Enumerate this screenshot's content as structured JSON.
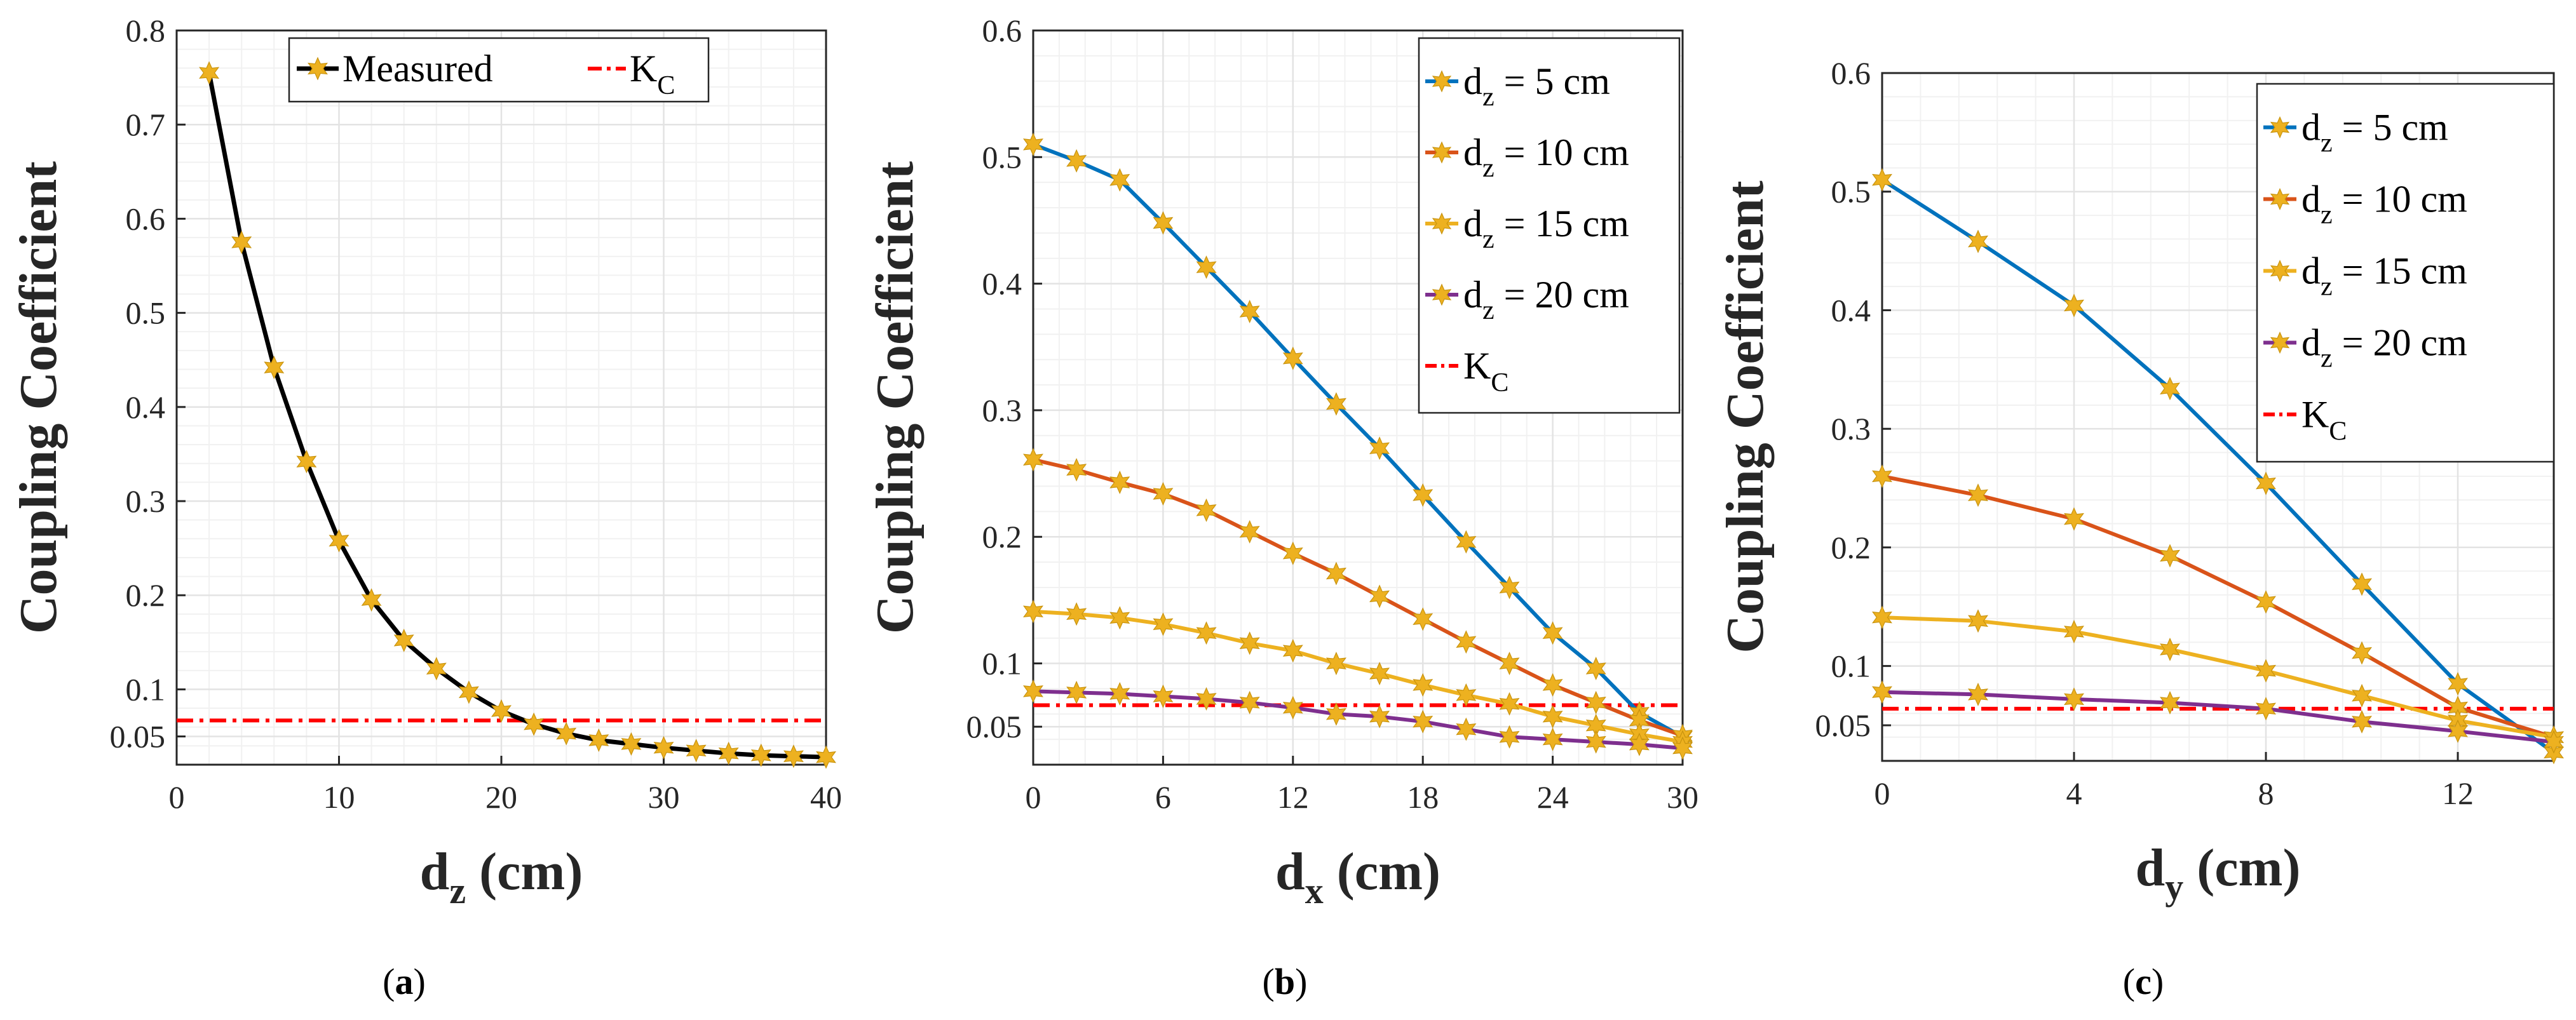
{
  "colors": {
    "blue": "#0072BD",
    "orange": "#D95319",
    "yellow": "#EDB120",
    "purple": "#7E2F8E",
    "black": "#000000",
    "threshold": "#FF0000",
    "marker": "#EDB120"
  },
  "chart_data": [
    {
      "type": "line",
      "panel_label": "a",
      "ylabel": "Coupling Coefficient",
      "xlabel_main": "d",
      "xlabel_sub": "z",
      "xlabel_unit": "(cm)",
      "xlim": [
        0,
        40
      ],
      "ylim": [
        0.02,
        0.8
      ],
      "xticks": [
        0,
        10,
        20,
        30,
        40
      ],
      "xtick_labels": [
        "0",
        "10",
        "20",
        "30",
        "40"
      ],
      "yticks": [
        0.05,
        0.1,
        0.2,
        0.3,
        0.4,
        0.5,
        0.6,
        0.7,
        0.8
      ],
      "ytick_labels": [
        "0.05",
        "0.1",
        "0.2",
        "0.3",
        "0.4",
        "0.5",
        "0.6",
        "0.7",
        "0.8"
      ],
      "grid": true,
      "legend_position": "top-right",
      "legend_layout": "horizontal",
      "series": [
        {
          "name": "Measured",
          "color": "#000000",
          "x": [
            2,
            4,
            6,
            8,
            10,
            12,
            14,
            16,
            18,
            20,
            22,
            24,
            26,
            28,
            30,
            32,
            34,
            36,
            38,
            40
          ],
          "values": [
            0.755,
            0.575,
            0.442,
            0.342,
            0.258,
            0.195,
            0.152,
            0.122,
            0.097,
            0.077,
            0.063,
            0.053,
            0.046,
            0.042,
            0.038,
            0.035,
            0.032,
            0.03,
            0.029,
            0.028
          ]
        }
      ],
      "threshold": {
        "name": "K",
        "sub": "C",
        "value": 0.067
      }
    },
    {
      "type": "line",
      "panel_label": "b",
      "ylabel": "Coupling Coefficient",
      "xlabel_main": "d",
      "xlabel_sub": "x",
      "xlabel_unit": "(cm)",
      "xlim": [
        0,
        30
      ],
      "ylim": [
        0.02,
        0.6
      ],
      "xticks": [
        0,
        6,
        12,
        18,
        24,
        30
      ],
      "xtick_labels": [
        "0",
        "6",
        "12",
        "18",
        "24",
        "30"
      ],
      "yticks": [
        0.05,
        0.1,
        0.2,
        0.3,
        0.4,
        0.5,
        0.6
      ],
      "ytick_labels": [
        "0.05",
        "0.1",
        "0.2",
        "0.3",
        "0.4",
        "0.5",
        "0.6"
      ],
      "grid": true,
      "legend_position": "top-right",
      "legend_layout": "vertical",
      "series": [
        {
          "name": "d",
          "name_sub": "z",
          "name_rest": " = 5 cm",
          "color": "#0072BD",
          "x": [
            0,
            2,
            4,
            6,
            8,
            10,
            12,
            14,
            16,
            18,
            20,
            22,
            24,
            26,
            28,
            30
          ],
          "values": [
            0.51,
            0.497,
            0.482,
            0.448,
            0.413,
            0.378,
            0.341,
            0.305,
            0.27,
            0.233,
            0.196,
            0.16,
            0.124,
            0.096,
            0.061,
            0.042
          ]
        },
        {
          "name": "d",
          "name_sub": "z",
          "name_rest": " = 10 cm",
          "color": "#D95319",
          "x": [
            0,
            2,
            4,
            6,
            8,
            10,
            12,
            14,
            16,
            18,
            20,
            22,
            24,
            26,
            28,
            30
          ],
          "values": [
            0.261,
            0.253,
            0.243,
            0.234,
            0.221,
            0.204,
            0.187,
            0.171,
            0.153,
            0.135,
            0.117,
            0.1,
            0.083,
            0.069,
            0.055,
            0.043
          ]
        },
        {
          "name": "d",
          "name_sub": "z",
          "name_rest": " = 15 cm",
          "color": "#EDB120",
          "x": [
            0,
            2,
            4,
            6,
            8,
            10,
            12,
            14,
            16,
            18,
            20,
            22,
            24,
            26,
            28,
            30
          ],
          "values": [
            0.141,
            0.139,
            0.136,
            0.131,
            0.124,
            0.116,
            0.11,
            0.1,
            0.092,
            0.083,
            0.075,
            0.068,
            0.058,
            0.051,
            0.044,
            0.038
          ]
        },
        {
          "name": "d",
          "name_sub": "z",
          "name_rest": " = 20 cm",
          "color": "#7E2F8E",
          "x": [
            0,
            2,
            4,
            6,
            8,
            10,
            12,
            14,
            16,
            18,
            20,
            22,
            24,
            26,
            28,
            30
          ],
          "values": [
            0.078,
            0.077,
            0.076,
            0.074,
            0.072,
            0.069,
            0.065,
            0.06,
            0.058,
            0.054,
            0.048,
            0.042,
            0.04,
            0.038,
            0.036,
            0.033
          ]
        }
      ],
      "threshold": {
        "name": "K",
        "sub": "C",
        "value": 0.067
      }
    },
    {
      "type": "line",
      "panel_label": "c",
      "ylabel": "Coupling Coefficient",
      "xlabel_main": "d",
      "xlabel_sub": "y",
      "xlabel_unit": "(cm)",
      "xlim": [
        0,
        14
      ],
      "ylim": [
        0.02,
        0.6
      ],
      "xticks": [
        0,
        4,
        8,
        12
      ],
      "xtick_labels": [
        "0",
        "4",
        "8",
        "12"
      ],
      "yticks": [
        0.05,
        0.1,
        0.2,
        0.3,
        0.4,
        0.5,
        0.6
      ],
      "ytick_labels": [
        "0.05",
        "0.1",
        "0.2",
        "0.3",
        "0.4",
        "0.5",
        "0.6"
      ],
      "grid": true,
      "legend_position": "top-right",
      "legend_layout": "vertical",
      "series": [
        {
          "name": "d",
          "name_sub": "z",
          "name_rest": " = 5 cm",
          "color": "#0072BD",
          "x": [
            0,
            2,
            4,
            6,
            8,
            10,
            12,
            14
          ],
          "values": [
            0.51,
            0.458,
            0.404,
            0.334,
            0.254,
            0.169,
            0.085,
            0.027
          ]
        },
        {
          "name": "d",
          "name_sub": "z",
          "name_rest": " = 10 cm",
          "color": "#D95319",
          "x": [
            0,
            2,
            4,
            6,
            8,
            10,
            12,
            14
          ],
          "values": [
            0.26,
            0.244,
            0.224,
            0.193,
            0.154,
            0.111,
            0.065,
            0.04
          ]
        },
        {
          "name": "d",
          "name_sub": "z",
          "name_rest": " = 15 cm",
          "color": "#EDB120",
          "x": [
            0,
            2,
            4,
            6,
            8,
            10,
            12,
            14
          ],
          "values": [
            0.141,
            0.138,
            0.129,
            0.114,
            0.096,
            0.075,
            0.054,
            0.04
          ]
        },
        {
          "name": "d",
          "name_sub": "z",
          "name_rest": " = 20 cm",
          "color": "#7E2F8E",
          "x": [
            0,
            2,
            4,
            6,
            8,
            10,
            12,
            14
          ],
          "values": [
            0.078,
            0.076,
            0.072,
            0.069,
            0.064,
            0.053,
            0.045,
            0.036
          ]
        }
      ],
      "threshold": {
        "name": "K",
        "sub": "C",
        "value": 0.064
      }
    }
  ],
  "captions": {
    "a": {
      "open": "(",
      "letter": "a",
      "close": ")"
    },
    "b": {
      "open": "(",
      "letter": "b",
      "close": ")"
    },
    "c": {
      "open": "(",
      "letter": "c",
      "close": ")"
    }
  }
}
